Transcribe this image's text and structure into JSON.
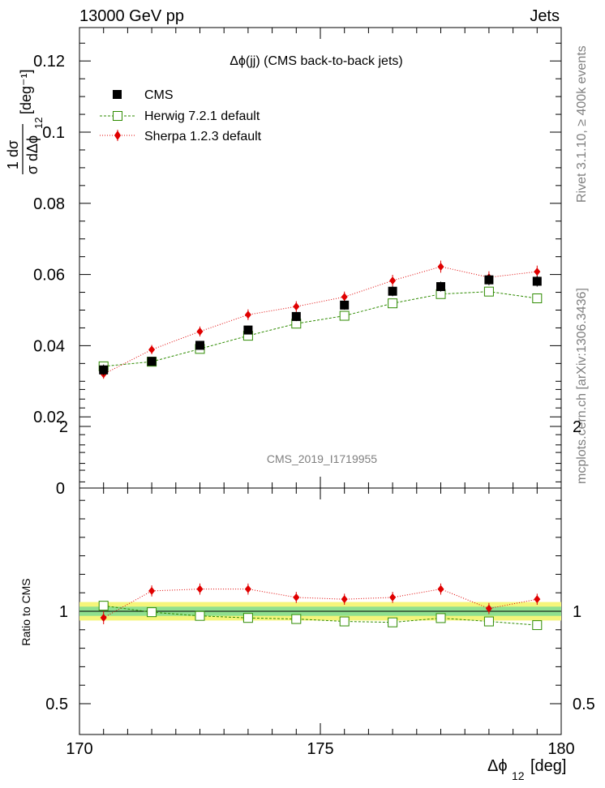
{
  "header": {
    "left": "13000 GeV pp",
    "right": "Jets",
    "side_top": "Rivet 3.1.10, ≥ 400k events",
    "side_bottom": "mcplots.cern.ch [arXiv:1306.3436]"
  },
  "chart_data": [
    {
      "type": "scatter",
      "panel": "main",
      "title": "Δϕ(jj) (CMS back-to-back jets)",
      "watermark": "CMS_2019_I1719955",
      "ylabel_main": "1 dσ / σ dΔϕ",
      "ylabel_sub": "12",
      "ylabel_unit": "[deg⁻¹]",
      "xlim": [
        170,
        180
      ],
      "ylim": [
        0,
        0.13
      ],
      "yticks": [
        0,
        0.02,
        0.04,
        0.06,
        0.08,
        0.1,
        0.12
      ],
      "ytick_labels": [
        "0",
        "0.02",
        "0.04",
        "0.06",
        "0.08",
        "0.1",
        "0.12"
      ],
      "x": [
        170.5,
        171.5,
        172.5,
        173.5,
        174.5,
        175.5,
        176.5,
        177.5,
        178.5,
        179.5
      ],
      "series": [
        {
          "name": "CMS",
          "color": "#000000",
          "marker": "filled-square",
          "values": [
            0.0332,
            0.0356,
            0.0401,
            0.0444,
            0.0482,
            0.0514,
            0.0553,
            0.0566,
            0.0585,
            0.0581
          ],
          "errors": [
            0.0015,
            0.0012,
            0.0012,
            0.0012,
            0.0013,
            0.0013,
            0.0014,
            0.0014,
            0.0015,
            0.0015
          ]
        },
        {
          "name": "Herwig 7.2.1 default",
          "color": "#2e8b00",
          "marker": "open-square",
          "values": [
            0.0342,
            0.0355,
            0.0391,
            0.0428,
            0.0462,
            0.0484,
            0.0519,
            0.0545,
            0.0552,
            0.0533
          ],
          "errors": [
            0.0004,
            0.0004,
            0.0004,
            0.0004,
            0.0004,
            0.0004,
            0.0004,
            0.0004,
            0.0004,
            0.0004
          ]
        },
        {
          "name": "Sherpa 1.2.3 default",
          "color": "#e00000",
          "marker": "filled-diamond",
          "values": [
            0.032,
            0.0389,
            0.044,
            0.0487,
            0.051,
            0.0537,
            0.0583,
            0.0622,
            0.0592,
            0.0608
          ],
          "errors": [
            0.0013,
            0.0013,
            0.0014,
            0.0015,
            0.0015,
            0.0015,
            0.0016,
            0.0017,
            0.0017,
            0.0017
          ]
        }
      ]
    },
    {
      "type": "scatter",
      "panel": "ratio",
      "ylabel": "Ratio to CMS",
      "xlabel_main": "Δϕ",
      "xlabel_sub": "12",
      "xlabel_unit": "[deg]",
      "xlim": [
        170,
        180
      ],
      "ylim": [
        0.35,
        2.3
      ],
      "yticks": [
        0.5,
        1,
        2
      ],
      "ytick_labels": [
        "0.5",
        "1",
        "2"
      ],
      "xticks": [
        170,
        175,
        180
      ],
      "xtick_labels": [
        "170",
        "175",
        "180"
      ],
      "band_inner": 0.025,
      "band_outer": 0.05,
      "x": [
        170.5,
        171.5,
        172.5,
        173.5,
        174.5,
        175.5,
        176.5,
        177.5,
        178.5,
        179.5
      ],
      "series": [
        {
          "name": "Herwig 7.2.1 default",
          "color": "#2e8b00",
          "marker": "open-square",
          "values": [
            1.03,
            0.995,
            0.975,
            0.964,
            0.958,
            0.945,
            0.94,
            0.963,
            0.945,
            0.925
          ]
        },
        {
          "name": "Sherpa 1.2.3 default",
          "color": "#e00000",
          "marker": "filled-diamond",
          "values": [
            0.965,
            1.11,
            1.12,
            1.12,
            1.075,
            1.065,
            1.075,
            1.12,
            1.015,
            1.065
          ],
          "errors": [
            0.035,
            0.03,
            0.03,
            0.03,
            0.03,
            0.03,
            0.03,
            0.03,
            0.03,
            0.03
          ]
        }
      ]
    }
  ]
}
